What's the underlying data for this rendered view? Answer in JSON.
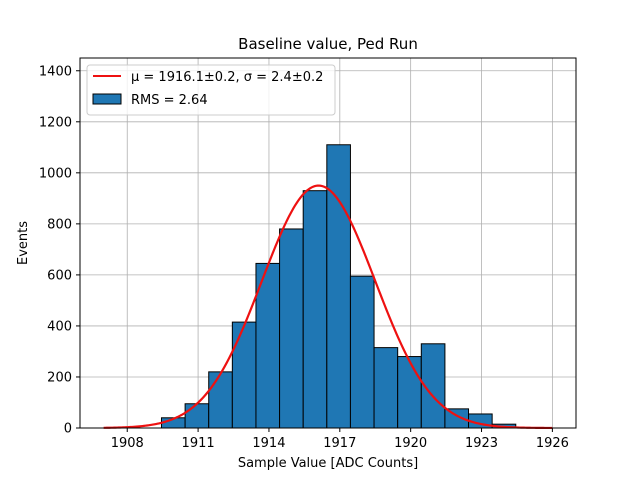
{
  "chart_data": {
    "type": "bar",
    "title": "Baseline value, Ped Run",
    "xlabel": "Sample Value [ADC Counts]",
    "ylabel": "Events",
    "xlim": [
      1906.0,
      1927.0
    ],
    "ylim": [
      0,
      1450
    ],
    "xticks": [
      1908,
      1911,
      1914,
      1917,
      1920,
      1923,
      1926
    ],
    "yticks": [
      0,
      200,
      400,
      600,
      800,
      1000,
      1200,
      1400
    ],
    "grid": true,
    "legend_position": "top-left",
    "bin_width": 1.0,
    "bin_start": 1909.45,
    "values": [
      40,
      95,
      220,
      415,
      645,
      780,
      930,
      1110,
      595,
      315,
      280,
      330,
      75,
      55,
      15
    ],
    "fit": {
      "label_mu": "μ = 1916.1±0.2",
      "label_sigma": "σ = 2.4±0.2",
      "mu": 1916.1,
      "sigma": 2.4,
      "amplitude": 950,
      "x_range": [
        1907,
        1926
      ],
      "color": "#ee1111"
    },
    "histogram": {
      "label": "RMS = 2.64",
      "color": "#1f77b4",
      "edge_color": "#000000"
    }
  }
}
